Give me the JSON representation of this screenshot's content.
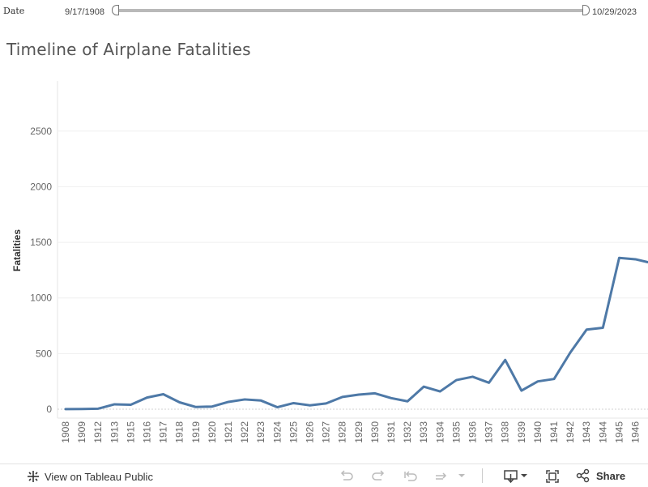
{
  "filter": {
    "label": "Date",
    "start": "9/17/1908",
    "end": "10/29/2023"
  },
  "chart_data": {
    "type": "line",
    "title": "Timeline of Airplane Fatalities",
    "xlabel": "",
    "ylabel": "Fatalities",
    "ylim": [
      -80,
      2950
    ],
    "yticks": [
      0,
      500,
      1000,
      1500,
      2000,
      2500
    ],
    "grid": true,
    "line_color": "#4e79a7",
    "categories": [
      "1908",
      "1909",
      "1912",
      "1913",
      "1915",
      "1916",
      "1917",
      "1918",
      "1919",
      "1920",
      "1921",
      "1922",
      "1923",
      "1924",
      "1925",
      "1926",
      "1927",
      "1928",
      "1929",
      "1930",
      "1931",
      "1932",
      "1933",
      "1934",
      "1935",
      "1936",
      "1937",
      "1938",
      "1939",
      "1940",
      "1941",
      "1942",
      "1943",
      "1944",
      "1945",
      "1946"
    ],
    "values": [
      1,
      2,
      5,
      44,
      40,
      105,
      135,
      62,
      20,
      24,
      66,
      88,
      78,
      18,
      55,
      35,
      52,
      110,
      131,
      143,
      100,
      71,
      203,
      160,
      262,
      292,
      238,
      443,
      167,
      250,
      272,
      510,
      716,
      732,
      1360,
      1348
    ],
    "tail_value": 1322
  },
  "toolbar": {
    "view_label": "View on Tableau Public",
    "share_label": "Share"
  }
}
